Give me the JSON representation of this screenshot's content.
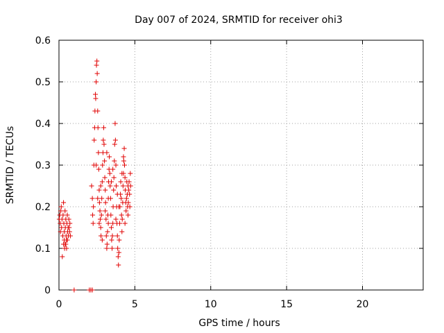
{
  "chart_data": {
    "type": "scatter",
    "title": "Day 007 of 2024, SRMTID for receiver ohi3",
    "xlabel": "GPS time / hours",
    "ylabel": "SRMTID / TECUs",
    "xlim": [
      0,
      24
    ],
    "ylim": [
      0,
      0.6
    ],
    "x_ticks": [
      0,
      5,
      10,
      15,
      20
    ],
    "x_tick_labels": [
      "0",
      "5",
      "10",
      "15",
      "20"
    ],
    "y_ticks": [
      0,
      0.1,
      0.2,
      0.3,
      0.4,
      0.5,
      0.6
    ],
    "y_tick_labels": [
      "0",
      "0.1",
      "0.2",
      "0.3",
      "0.4",
      "0.5",
      "0.6"
    ],
    "grid": true,
    "marker": "+",
    "marker_color": "#e00000",
    "series": [
      {
        "name": "SRMTID",
        "points": [
          [
            0.02,
            0.17
          ],
          [
            0.05,
            0.18
          ],
          [
            0.08,
            0.16
          ],
          [
            0.1,
            0.14
          ],
          [
            0.12,
            0.19
          ],
          [
            0.15,
            0.2
          ],
          [
            0.17,
            0.15
          ],
          [
            0.2,
            0.17
          ],
          [
            0.22,
            0.08
          ],
          [
            0.25,
            0.13
          ],
          [
            0.27,
            0.18
          ],
          [
            0.3,
            0.21
          ],
          [
            0.32,
            0.16
          ],
          [
            0.35,
            0.12
          ],
          [
            0.37,
            0.1
          ],
          [
            0.4,
            0.11
          ],
          [
            0.42,
            0.15
          ],
          [
            0.45,
            0.17
          ],
          [
            0.47,
            0.13
          ],
          [
            0.5,
            0.12
          ],
          [
            0.52,
            0.16
          ],
          [
            0.55,
            0.18
          ],
          [
            0.57,
            0.14
          ],
          [
            0.6,
            0.15
          ],
          [
            0.62,
            0.13
          ],
          [
            0.65,
            0.17
          ],
          [
            0.67,
            0.15
          ],
          [
            0.7,
            0.14
          ],
          [
            0.72,
            0.16
          ],
          [
            0.75,
            0.13
          ],
          [
            0.3,
            0.11
          ],
          [
            0.35,
            0.14
          ],
          [
            0.4,
            0.19
          ],
          [
            0.45,
            0.11
          ],
          [
            0.5,
            0.1
          ],
          [
            0.55,
            0.12
          ],
          [
            1.0,
            0.0
          ],
          [
            2.0,
            0.0
          ],
          [
            2.1,
            0.0
          ],
          [
            2.2,
            0.0
          ],
          [
            2.15,
            0.25
          ],
          [
            2.2,
            0.22
          ],
          [
            2.22,
            0.18
          ],
          [
            2.25,
            0.16
          ],
          [
            2.27,
            0.2
          ],
          [
            2.3,
            0.3
          ],
          [
            2.32,
            0.36
          ],
          [
            2.35,
            0.39
          ],
          [
            2.37,
            0.43
          ],
          [
            2.4,
            0.47
          ],
          [
            2.42,
            0.46
          ],
          [
            2.45,
            0.5
          ],
          [
            2.47,
            0.54
          ],
          [
            2.5,
            0.55
          ],
          [
            2.52,
            0.52
          ],
          [
            2.55,
            0.43
          ],
          [
            2.57,
            0.39
          ],
          [
            2.6,
            0.33
          ],
          [
            2.62,
            0.29
          ],
          [
            2.65,
            0.24
          ],
          [
            2.67,
            0.21
          ],
          [
            2.7,
            0.19
          ],
          [
            2.72,
            0.17
          ],
          [
            2.75,
            0.15
          ],
          [
            2.77,
            0.13
          ],
          [
            2.8,
            0.18
          ],
          [
            2.82,
            0.22
          ],
          [
            2.85,
            0.26
          ],
          [
            2.87,
            0.3
          ],
          [
            2.9,
            0.33
          ],
          [
            2.92,
            0.36
          ],
          [
            2.95,
            0.39
          ],
          [
            2.97,
            0.35
          ],
          [
            3.0,
            0.31
          ],
          [
            3.02,
            0.27
          ],
          [
            3.05,
            0.24
          ],
          [
            3.07,
            0.21
          ],
          [
            3.1,
            0.17
          ],
          [
            3.12,
            0.13
          ],
          [
            3.15,
            0.1
          ],
          [
            3.17,
            0.11
          ],
          [
            3.2,
            0.14
          ],
          [
            3.22,
            0.18
          ],
          [
            3.25,
            0.22
          ],
          [
            3.27,
            0.26
          ],
          [
            3.3,
            0.29
          ],
          [
            3.32,
            0.32
          ],
          [
            3.35,
            0.28
          ],
          [
            3.37,
            0.25
          ],
          [
            3.4,
            0.22
          ],
          [
            3.42,
            0.18
          ],
          [
            3.45,
            0.15
          ],
          [
            3.47,
            0.12
          ],
          [
            3.5,
            0.1
          ],
          [
            3.52,
            0.13
          ],
          [
            3.55,
            0.16
          ],
          [
            3.57,
            0.2
          ],
          [
            3.6,
            0.24
          ],
          [
            3.62,
            0.27
          ],
          [
            3.65,
            0.31
          ],
          [
            3.67,
            0.35
          ],
          [
            3.7,
            0.4
          ],
          [
            3.72,
            0.36
          ],
          [
            3.75,
            0.3
          ],
          [
            3.77,
            0.25
          ],
          [
            3.8,
            0.2
          ],
          [
            3.82,
            0.16
          ],
          [
            3.85,
            0.13
          ],
          [
            3.87,
            0.1
          ],
          [
            3.9,
            0.08
          ],
          [
            3.92,
            0.06
          ],
          [
            3.95,
            0.09
          ],
          [
            3.97,
            0.12
          ],
          [
            4.0,
            0.16
          ],
          [
            4.02,
            0.2
          ],
          [
            4.05,
            0.23
          ],
          [
            4.07,
            0.26
          ],
          [
            4.1,
            0.22
          ],
          [
            4.12,
            0.18
          ],
          [
            4.15,
            0.14
          ],
          [
            4.17,
            0.17
          ],
          [
            4.2,
            0.21
          ],
          [
            4.22,
            0.25
          ],
          [
            4.25,
            0.28
          ],
          [
            4.27,
            0.31
          ],
          [
            4.3,
            0.34
          ],
          [
            4.32,
            0.3
          ],
          [
            4.35,
            0.27
          ],
          [
            4.37,
            0.24
          ],
          [
            4.4,
            0.21
          ],
          [
            4.42,
            0.19
          ],
          [
            4.45,
            0.22
          ],
          [
            4.47,
            0.26
          ],
          [
            4.5,
            0.23
          ],
          [
            4.52,
            0.2
          ],
          [
            4.55,
            0.18
          ],
          [
            4.57,
            0.21
          ],
          [
            4.6,
            0.24
          ],
          [
            4.62,
            0.26
          ],
          [
            4.65,
            0.23
          ],
          [
            4.67,
            0.2
          ],
          [
            4.7,
            0.28
          ],
          [
            4.72,
            0.25
          ],
          [
            2.55,
            0.22
          ],
          [
            2.65,
            0.16
          ],
          [
            2.85,
            0.12
          ],
          [
            3.05,
            0.19
          ],
          [
            3.25,
            0.16
          ],
          [
            3.45,
            0.26
          ],
          [
            3.75,
            0.17
          ],
          [
            3.95,
            0.2
          ],
          [
            4.15,
            0.28
          ],
          [
            4.35,
            0.16
          ],
          [
            4.55,
            0.25
          ],
          [
            2.45,
            0.3
          ],
          [
            2.75,
            0.25
          ],
          [
            3.15,
            0.33
          ],
          [
            3.55,
            0.29
          ],
          [
            3.85,
            0.23
          ],
          [
            4.25,
            0.32
          ]
        ]
      }
    ]
  }
}
